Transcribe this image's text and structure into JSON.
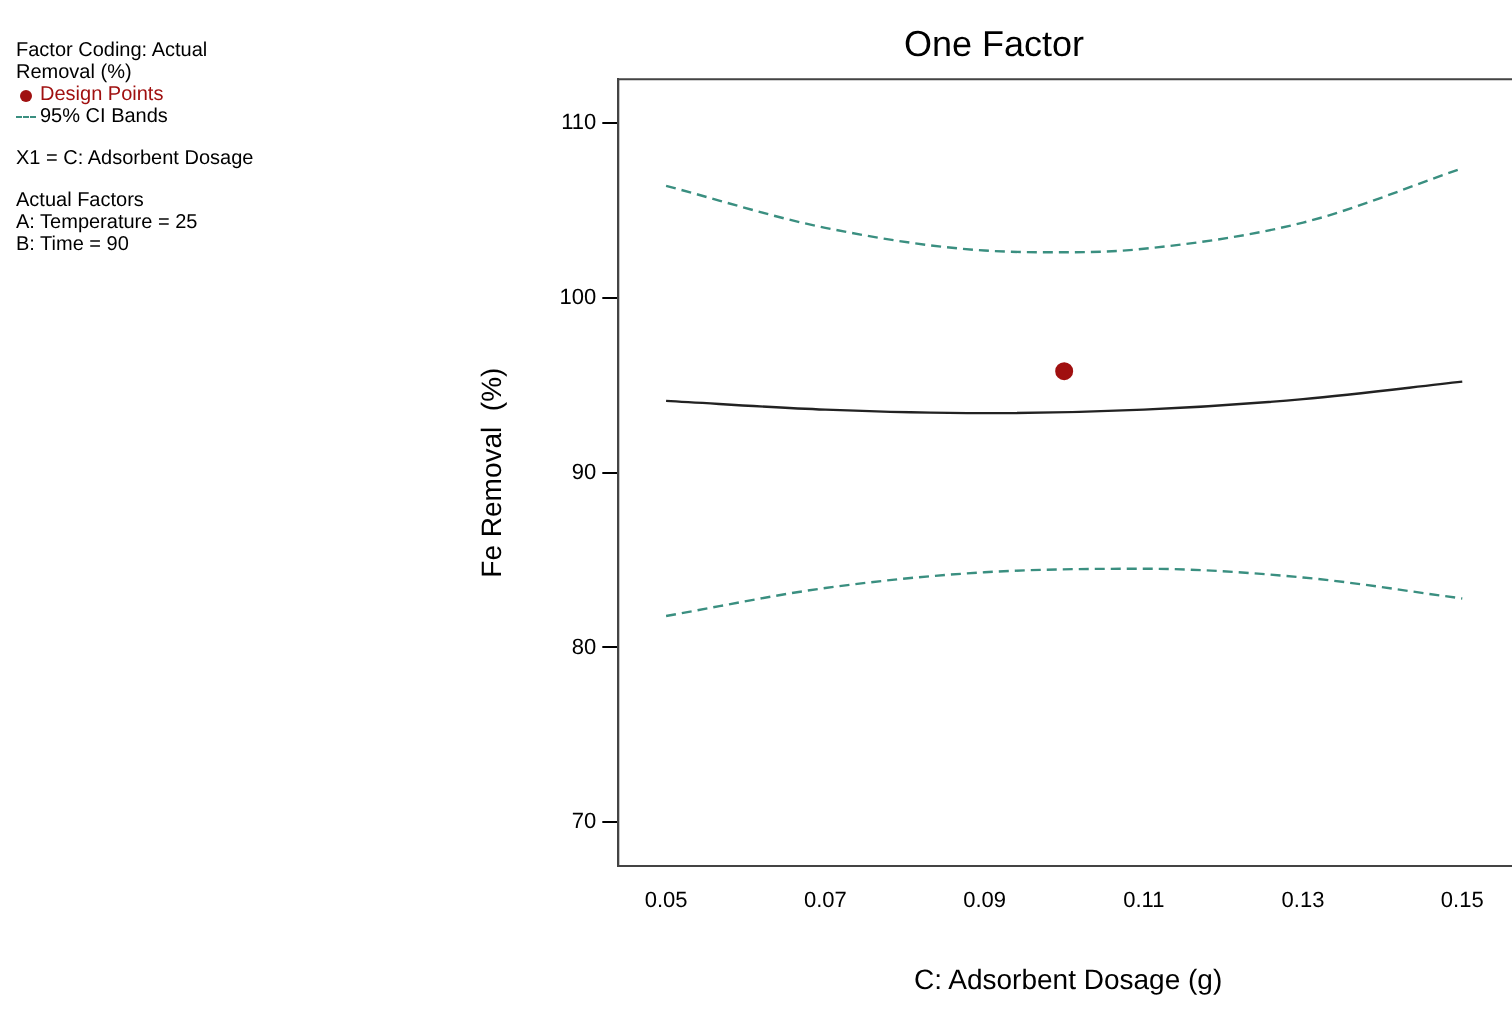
{
  "chart_data": {
    "type": "line",
    "title": "One Factor",
    "xlabel": "C: Adsorbent Dosage (g)",
    "ylabel": "Fe Removal  (%)",
    "annotations": [
      "Factor Coding: Actual",
      "Removal  (%)",
      "X1 = C: Adsorbent Dosage",
      "Actual Factors",
      "A: Temperature = 25",
      "B: Time = 90"
    ],
    "xlim": [
      0.044,
      0.157
    ],
    "xticks": [
      {
        "value": 0.05,
        "label": "0.05"
      },
      {
        "value": 0.07,
        "label": "0.07"
      },
      {
        "value": 0.09,
        "label": "0.09"
      },
      {
        "value": 0.11,
        "label": "0.11"
      },
      {
        "value": 0.13,
        "label": "0.13"
      },
      {
        "value": 0.15,
        "label": "0.15"
      }
    ],
    "ylim": [
      67.5,
      112.5
    ],
    "yticks": [
      70,
      80,
      90,
      100,
      110
    ],
    "grid": false,
    "legend": "left",
    "series": [
      {
        "type": "scatter",
        "name": "Design Points",
        "color": "#a01010",
        "marker": "circle",
        "x": [
          0.1
        ],
        "values": [
          95.8
        ]
      },
      {
        "color": "#222222",
        "line_style": "solid",
        "marker": "none",
        "x": [
          0.05,
          0.07,
          0.09,
          0.11,
          0.13,
          0.15
        ],
        "values": [
          94.1,
          93.6,
          93.4,
          93.6,
          94.2,
          95.2
        ]
      },
      {
        "name": "95% CI Bands",
        "color": "#3a8f80",
        "line_style": "dashed",
        "marker": "none",
        "x": [
          0.05,
          0.07,
          0.09,
          0.1,
          0.11,
          0.13,
          0.15
        ],
        "values": [
          106.4,
          104.0,
          102.7,
          102.6,
          102.8,
          104.3,
          107.4
        ]
      },
      {
        "color": "#3a8f80",
        "line_style": "dashed",
        "marker": "none",
        "x": [
          0.05,
          0.07,
          0.09,
          0.11,
          0.13,
          0.15
        ],
        "values": [
          81.8,
          83.4,
          84.3,
          84.5,
          84.0,
          82.8
        ]
      }
    ]
  }
}
